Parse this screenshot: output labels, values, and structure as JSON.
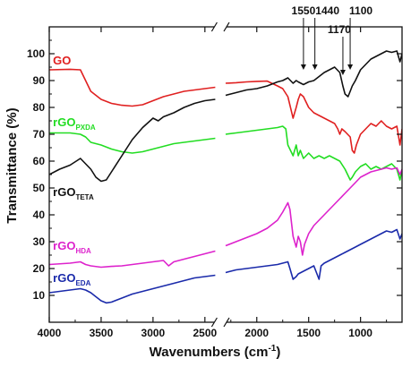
{
  "chart_data": {
    "type": "line",
    "title": "",
    "xlabel": "Wavenumbers",
    "xlabel_unit": "cm",
    "xlabel_unit_exp": "-1",
    "ylabel": "Transmittance (%)",
    "xlim": [
      4000,
      600
    ],
    "ylim": [
      0,
      110
    ],
    "x_axis_break": [
      2400,
      2300
    ],
    "x_ticks": [
      "4000",
      "3500",
      "3000",
      "2500",
      "2000",
      "1500",
      "1000"
    ],
    "x_tick_values": [
      4000,
      3500,
      3000,
      2500,
      2000,
      1500,
      1000
    ],
    "y_ticks": [
      "10",
      "20",
      "30",
      "40",
      "50",
      "60",
      "70",
      "80",
      "90",
      "100"
    ],
    "y_tick_values": [
      10,
      20,
      30,
      40,
      50,
      60,
      70,
      80,
      90,
      100
    ],
    "grid": false,
    "annotations": [
      {
        "text": "1550",
        "x": 1550
      },
      {
        "text": "1440",
        "x": 1440
      },
      {
        "text": "1170",
        "x": 1170
      },
      {
        "text": "1100",
        "x": 1100
      }
    ],
    "series": [
      {
        "name": "GO",
        "sub": "",
        "color": "#e02020",
        "label_x": 3990,
        "label_y": 96,
        "points": [
          [
            4000,
            94
          ],
          [
            3800,
            94.2
          ],
          [
            3700,
            94
          ],
          [
            3650,
            90
          ],
          [
            3600,
            86
          ],
          [
            3500,
            83
          ],
          [
            3400,
            81.5
          ],
          [
            3300,
            80.8
          ],
          [
            3200,
            80.5
          ],
          [
            3100,
            81
          ],
          [
            3000,
            82.5
          ],
          [
            2900,
            84
          ],
          [
            2800,
            85
          ],
          [
            2700,
            86
          ],
          [
            2600,
            86.5
          ],
          [
            2500,
            87
          ],
          [
            2400,
            87.5
          ],
          [
            2300,
            89
          ],
          [
            2200,
            89.2
          ],
          [
            2100,
            89.5
          ],
          [
            2000,
            89.7
          ],
          [
            1900,
            89.8
          ],
          [
            1800,
            88
          ],
          [
            1750,
            87
          ],
          [
            1700,
            84
          ],
          [
            1650,
            76
          ],
          [
            1620,
            80
          ],
          [
            1600,
            83
          ],
          [
            1580,
            85
          ],
          [
            1550,
            84
          ],
          [
            1500,
            80
          ],
          [
            1450,
            78
          ],
          [
            1400,
            77
          ],
          [
            1350,
            76
          ],
          [
            1300,
            75
          ],
          [
            1250,
            74
          ],
          [
            1220,
            72
          ],
          [
            1200,
            70
          ],
          [
            1180,
            72
          ],
          [
            1150,
            71
          ],
          [
            1100,
            69
          ],
          [
            1080,
            64
          ],
          [
            1060,
            63
          ],
          [
            1040,
            66
          ],
          [
            1000,
            70
          ],
          [
            950,
            72
          ],
          [
            900,
            74
          ],
          [
            850,
            73
          ],
          [
            800,
            75
          ],
          [
            750,
            73
          ],
          [
            700,
            72
          ],
          [
            650,
            73
          ],
          [
            620,
            66
          ],
          [
            600,
            72
          ]
        ]
      },
      {
        "name": "rGO",
        "sub": "PXDA",
        "color": "#22dd22",
        "label_x": 3990,
        "label_y": 73,
        "points": [
          [
            4000,
            70.5
          ],
          [
            3800,
            70.5
          ],
          [
            3700,
            70
          ],
          [
            3650,
            69
          ],
          [
            3600,
            67
          ],
          [
            3500,
            66
          ],
          [
            3400,
            64.5
          ],
          [
            3300,
            63.5
          ],
          [
            3200,
            63
          ],
          [
            3100,
            63.5
          ],
          [
            3000,
            64.5
          ],
          [
            2900,
            65.5
          ],
          [
            2800,
            66.5
          ],
          [
            2700,
            67
          ],
          [
            2600,
            67.5
          ],
          [
            2500,
            68
          ],
          [
            2400,
            68.5
          ],
          [
            2300,
            70
          ],
          [
            2200,
            70.5
          ],
          [
            2100,
            71
          ],
          [
            2000,
            71.5
          ],
          [
            1900,
            72
          ],
          [
            1800,
            72.5
          ],
          [
            1750,
            73
          ],
          [
            1720,
            72
          ],
          [
            1700,
            66
          ],
          [
            1650,
            62
          ],
          [
            1620,
            66
          ],
          [
            1600,
            62
          ],
          [
            1580,
            64
          ],
          [
            1550,
            61
          ],
          [
            1500,
            63
          ],
          [
            1450,
            61
          ],
          [
            1400,
            62
          ],
          [
            1350,
            61
          ],
          [
            1300,
            62
          ],
          [
            1250,
            61
          ],
          [
            1200,
            60
          ],
          [
            1150,
            57
          ],
          [
            1100,
            53
          ],
          [
            1080,
            54
          ],
          [
            1050,
            56
          ],
          [
            1000,
            58
          ],
          [
            950,
            59
          ],
          [
            900,
            57
          ],
          [
            850,
            58
          ],
          [
            800,
            57
          ],
          [
            750,
            58
          ],
          [
            700,
            59
          ],
          [
            650,
            57
          ],
          [
            620,
            53
          ],
          [
            600,
            57
          ]
        ]
      },
      {
        "name": "rGO",
        "sub": "TETA",
        "color": "#111111",
        "label_x": 3990,
        "label_y": 47,
        "points": [
          [
            4000,
            55
          ],
          [
            3900,
            57
          ],
          [
            3800,
            58.5
          ],
          [
            3700,
            61
          ],
          [
            3650,
            59
          ],
          [
            3600,
            57
          ],
          [
            3550,
            54
          ],
          [
            3500,
            52.5
          ],
          [
            3450,
            53
          ],
          [
            3400,
            56
          ],
          [
            3300,
            62
          ],
          [
            3200,
            68
          ],
          [
            3100,
            72.5
          ],
          [
            3000,
            76
          ],
          [
            2950,
            75
          ],
          [
            2900,
            76.5
          ],
          [
            2800,
            78
          ],
          [
            2700,
            80
          ],
          [
            2600,
            81.5
          ],
          [
            2500,
            82.5
          ],
          [
            2400,
            83
          ],
          [
            2300,
            84.5
          ],
          [
            2200,
            85.5
          ],
          [
            2100,
            86.5
          ],
          [
            2000,
            87
          ],
          [
            1900,
            88
          ],
          [
            1800,
            89.5
          ],
          [
            1750,
            90
          ],
          [
            1700,
            91
          ],
          [
            1650,
            89
          ],
          [
            1620,
            90
          ],
          [
            1600,
            89.5
          ],
          [
            1550,
            88.5
          ],
          [
            1500,
            89.5
          ],
          [
            1450,
            90
          ],
          [
            1400,
            91.5
          ],
          [
            1350,
            93
          ],
          [
            1300,
            94
          ],
          [
            1250,
            95
          ],
          [
            1200,
            93
          ],
          [
            1170,
            88
          ],
          [
            1150,
            85
          ],
          [
            1120,
            84
          ],
          [
            1100,
            86
          ],
          [
            1080,
            88
          ],
          [
            1050,
            90
          ],
          [
            1000,
            94
          ],
          [
            950,
            96
          ],
          [
            900,
            98
          ],
          [
            850,
            99
          ],
          [
            800,
            100
          ],
          [
            750,
            101
          ],
          [
            700,
            100.5
          ],
          [
            650,
            101
          ],
          [
            620,
            97
          ],
          [
            600,
            100
          ]
        ]
      },
      {
        "name": "rGO",
        "sub": "HDA",
        "color": "#dd22cc",
        "label_x": 3990,
        "label_y": 27,
        "points": [
          [
            4000,
            21.5
          ],
          [
            3800,
            22
          ],
          [
            3700,
            22.5
          ],
          [
            3650,
            21.5
          ],
          [
            3600,
            21
          ],
          [
            3500,
            20.5
          ],
          [
            3400,
            20.8
          ],
          [
            3300,
            21
          ],
          [
            3200,
            21.5
          ],
          [
            3100,
            22
          ],
          [
            3000,
            22.5
          ],
          [
            2900,
            23
          ],
          [
            2850,
            21
          ],
          [
            2800,
            22.5
          ],
          [
            2700,
            23.5
          ],
          [
            2600,
            24.5
          ],
          [
            2500,
            25.5
          ],
          [
            2400,
            26.5
          ],
          [
            2300,
            28.5
          ],
          [
            2200,
            30
          ],
          [
            2100,
            31.5
          ],
          [
            2000,
            33
          ],
          [
            1900,
            35
          ],
          [
            1800,
            38
          ],
          [
            1750,
            41
          ],
          [
            1700,
            44.5
          ],
          [
            1680,
            42
          ],
          [
            1650,
            32
          ],
          [
            1620,
            28
          ],
          [
            1600,
            32
          ],
          [
            1580,
            30
          ],
          [
            1560,
            25
          ],
          [
            1540,
            29
          ],
          [
            1500,
            33
          ],
          [
            1450,
            36
          ],
          [
            1400,
            38
          ],
          [
            1350,
            40
          ],
          [
            1300,
            42
          ],
          [
            1250,
            44
          ],
          [
            1200,
            46
          ],
          [
            1150,
            48
          ],
          [
            1100,
            50
          ],
          [
            1050,
            52
          ],
          [
            1000,
            54
          ],
          [
            950,
            55
          ],
          [
            900,
            56
          ],
          [
            850,
            56.5
          ],
          [
            800,
            57
          ],
          [
            750,
            57.5
          ],
          [
            700,
            57
          ],
          [
            650,
            57.5
          ],
          [
            620,
            55
          ],
          [
            600,
            57
          ]
        ]
      },
      {
        "name": "rGO",
        "sub": "EDA",
        "color": "#1a2aaa",
        "label_x": 3990,
        "label_y": 15,
        "points": [
          [
            4000,
            11
          ],
          [
            3900,
            11.5
          ],
          [
            3800,
            12
          ],
          [
            3700,
            12.5
          ],
          [
            3650,
            12
          ],
          [
            3600,
            11
          ],
          [
            3550,
            9.5
          ],
          [
            3500,
            8
          ],
          [
            3450,
            7.2
          ],
          [
            3400,
            7.5
          ],
          [
            3300,
            9
          ],
          [
            3200,
            10.5
          ],
          [
            3100,
            11.5
          ],
          [
            3000,
            12.5
          ],
          [
            2900,
            13.5
          ],
          [
            2800,
            14.5
          ],
          [
            2700,
            15.5
          ],
          [
            2600,
            16.5
          ],
          [
            2500,
            17
          ],
          [
            2400,
            17.5
          ],
          [
            2300,
            18.5
          ],
          [
            2200,
            19.5
          ],
          [
            2100,
            20
          ],
          [
            2000,
            20.5
          ],
          [
            1900,
            21
          ],
          [
            1800,
            21.5
          ],
          [
            1750,
            22
          ],
          [
            1700,
            22.5
          ],
          [
            1680,
            20
          ],
          [
            1650,
            16
          ],
          [
            1620,
            17
          ],
          [
            1600,
            18
          ],
          [
            1550,
            19
          ],
          [
            1500,
            20
          ],
          [
            1450,
            21
          ],
          [
            1400,
            16
          ],
          [
            1380,
            21
          ],
          [
            1350,
            22
          ],
          [
            1300,
            23
          ],
          [
            1250,
            24
          ],
          [
            1200,
            25
          ],
          [
            1150,
            26
          ],
          [
            1100,
            27
          ],
          [
            1050,
            28
          ],
          [
            1000,
            29
          ],
          [
            950,
            30
          ],
          [
            900,
            31
          ],
          [
            850,
            32
          ],
          [
            800,
            33
          ],
          [
            750,
            34
          ],
          [
            700,
            33.5
          ],
          [
            650,
            34.5
          ],
          [
            620,
            31
          ],
          [
            600,
            33
          ]
        ]
      }
    ]
  }
}
